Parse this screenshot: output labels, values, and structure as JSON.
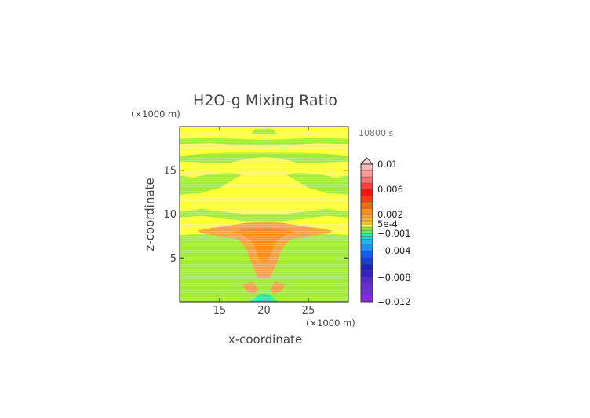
{
  "chart_data": {
    "type": "heatmap",
    "title": "H2O-g Mixing Ratio",
    "xlabel": "x-coordinate",
    "ylabel": "z-coordinate",
    "x_unit": "(×1000 m)",
    "y_unit": "(×1000 m)",
    "time_label": "10800 s",
    "xlim": [
      10.5,
      29.5
    ],
    "ylim": [
      0,
      20
    ],
    "x_ticks": [
      15,
      20,
      25
    ],
    "x_tick_labels": [
      "15",
      "20",
      "25"
    ],
    "y_ticks": [
      5,
      10,
      15
    ],
    "y_tick_labels": [
      "5",
      "10",
      "15"
    ],
    "colorbar": {
      "range": [
        -0.012,
        0.01
      ],
      "labels": [
        {
          "value": 0.01,
          "text": "0.01"
        },
        {
          "value": 0.006,
          "text": "0.006"
        },
        {
          "value": 0.002,
          "text": "0.002"
        },
        {
          "value": 0.0005,
          "text": "5e-4"
        },
        {
          "value": -0.001,
          "text": "−0.001"
        },
        {
          "value": -0.004,
          "text": "−0.004"
        },
        {
          "value": -0.008,
          "text": "−0.008"
        },
        {
          "value": -0.012,
          "text": "−0.012"
        }
      ],
      "levels": [
        {
          "from": -0.012,
          "to": -0.011,
          "color": "#8a2be2"
        },
        {
          "from": -0.011,
          "to": -0.01,
          "color": "#7a2bd8"
        },
        {
          "from": -0.01,
          "to": -0.009,
          "color": "#6a2bd0"
        },
        {
          "from": -0.009,
          "to": -0.008,
          "color": "#552bc8"
        },
        {
          "from": -0.008,
          "to": -0.007,
          "color": "#3a1fbf"
        },
        {
          "from": -0.007,
          "to": -0.006,
          "color": "#2020c0"
        },
        {
          "from": -0.006,
          "to": -0.005,
          "color": "#1040d8"
        },
        {
          "from": -0.005,
          "to": -0.004,
          "color": "#1060f0"
        },
        {
          "from": -0.004,
          "to": -0.003,
          "color": "#1e90ff"
        },
        {
          "from": -0.003,
          "to": -0.002,
          "color": "#20b8f0"
        },
        {
          "from": -0.002,
          "to": -0.0015,
          "color": "#20d8d0"
        },
        {
          "from": -0.0015,
          "to": -0.001,
          "color": "#33e6a0"
        },
        {
          "from": -0.001,
          "to": -0.0005,
          "color": "#66ef55"
        },
        {
          "from": -0.0005,
          "to": 0.0,
          "color": "#a2eb3c"
        },
        {
          "from": 0.0,
          "to": 0.0005,
          "color": "#ffff40"
        },
        {
          "from": 0.0005,
          "to": 0.001,
          "color": "#ffd040"
        },
        {
          "from": 0.001,
          "to": 0.0015,
          "color": "#ffb040"
        },
        {
          "from": 0.0015,
          "to": 0.002,
          "color": "#f5a04a"
        },
        {
          "from": 0.002,
          "to": 0.003,
          "color": "#ff8c1a"
        },
        {
          "from": 0.003,
          "to": 0.004,
          "color": "#ff6a10"
        },
        {
          "from": 0.004,
          "to": 0.005,
          "color": "#ff3c10"
        },
        {
          "from": 0.005,
          "to": 0.006,
          "color": "#ff1010"
        },
        {
          "from": 0.006,
          "to": 0.007,
          "color": "#ff4040"
        },
        {
          "from": 0.007,
          "to": 0.008,
          "color": "#ff7070"
        },
        {
          "from": 0.008,
          "to": 0.009,
          "color": "#ff9a9a"
        },
        {
          "from": 0.009,
          "to": 0.01,
          "color": "#ffb6b6"
        }
      ]
    },
    "regions": [
      {
        "name": "yellow-background",
        "color": "#ffff40",
        "polygon": [
          [
            10.5,
            0
          ],
          [
            29.5,
            0
          ],
          [
            29.5,
            20
          ],
          [
            10.5,
            20
          ]
        ]
      },
      {
        "name": "green-layer-0-8",
        "color": "#a2eb3c",
        "polygon": [
          [
            10.5,
            0
          ],
          [
            29.5,
            0
          ],
          [
            29.5,
            7.6
          ],
          [
            28,
            7.7
          ],
          [
            25,
            7.7
          ],
          [
            22,
            7.4
          ],
          [
            18,
            7.4
          ],
          [
            15,
            7.7
          ],
          [
            12,
            7.7
          ],
          [
            10.5,
            7.6
          ]
        ]
      },
      {
        "name": "green-band-9-10",
        "color": "#a2eb3c",
        "polygon": [
          [
            10.5,
            9.6
          ],
          [
            13,
            9.8
          ],
          [
            16,
            9.4
          ],
          [
            18,
            9.2
          ],
          [
            22,
            9.2
          ],
          [
            24,
            9.4
          ],
          [
            27,
            9.8
          ],
          [
            29.5,
            9.6
          ],
          [
            29.5,
            10.3
          ],
          [
            27,
            10.6
          ],
          [
            24,
            10.2
          ],
          [
            22,
            10.0
          ],
          [
            18,
            10.0
          ],
          [
            16,
            10.2
          ],
          [
            13,
            10.6
          ],
          [
            10.5,
            10.3
          ]
        ]
      },
      {
        "name": "green-left-wedge-12-15",
        "color": "#a2eb3c",
        "polygon": [
          [
            10.5,
            12.2
          ],
          [
            13,
            12.4
          ],
          [
            15,
            13.0
          ],
          [
            16.5,
            13.9
          ],
          [
            17.5,
            14.5
          ],
          [
            16.5,
            14.7
          ],
          [
            14,
            14.6
          ],
          [
            12,
            14.2
          ],
          [
            10.5,
            14.4
          ]
        ]
      },
      {
        "name": "green-right-wedge-12-15",
        "color": "#a2eb3c",
        "polygon": [
          [
            29.5,
            12.2
          ],
          [
            27,
            12.4
          ],
          [
            25,
            13.0
          ],
          [
            23.5,
            13.9
          ],
          [
            22.5,
            14.5
          ],
          [
            23.5,
            14.7
          ],
          [
            26,
            14.6
          ],
          [
            28,
            14.2
          ],
          [
            29.5,
            14.4
          ]
        ]
      },
      {
        "name": "green-band-16-17",
        "color": "#a2eb3c",
        "polygon": [
          [
            10.5,
            16.0
          ],
          [
            13,
            15.9
          ],
          [
            16,
            15.8
          ],
          [
            18,
            16.3
          ],
          [
            20,
            16.5
          ],
          [
            22,
            16.3
          ],
          [
            24,
            15.8
          ],
          [
            27,
            15.9
          ],
          [
            29.5,
            16.0
          ],
          [
            29.5,
            16.6
          ],
          [
            27,
            16.9
          ],
          [
            24,
            17.0
          ],
          [
            22,
            17.0
          ],
          [
            18,
            17.0
          ],
          [
            16,
            17.0
          ],
          [
            13,
            16.9
          ],
          [
            10.5,
            16.6
          ]
        ]
      },
      {
        "name": "green-band-18",
        "color": "#a2eb3c",
        "polygon": [
          [
            10.5,
            18.0
          ],
          [
            14,
            18.1
          ],
          [
            17,
            17.9
          ],
          [
            20,
            17.8
          ],
          [
            23,
            17.9
          ],
          [
            26,
            18.1
          ],
          [
            29.5,
            18.0
          ],
          [
            29.5,
            18.6
          ],
          [
            26,
            18.7
          ],
          [
            23,
            18.6
          ],
          [
            20,
            18.5
          ],
          [
            17,
            18.6
          ],
          [
            14,
            18.7
          ],
          [
            10.5,
            18.6
          ]
        ]
      },
      {
        "name": "green-top-center",
        "color": "#a2eb3c",
        "polygon": [
          [
            18.5,
            19.1
          ],
          [
            21.5,
            19.1
          ],
          [
            21.0,
            19.7
          ],
          [
            19.0,
            19.7
          ]
        ]
      },
      {
        "name": "orange-anvil",
        "color": "#f5a04a",
        "polygon": [
          [
            12.5,
            8.1
          ],
          [
            14,
            8.4
          ],
          [
            16,
            8.7
          ],
          [
            18,
            9.0
          ],
          [
            20,
            9.1
          ],
          [
            22,
            9.0
          ],
          [
            24,
            8.7
          ],
          [
            26,
            8.4
          ],
          [
            27.7,
            8.1
          ],
          [
            27.3,
            7.8
          ],
          [
            25,
            7.5
          ],
          [
            23,
            7.1
          ],
          [
            22.3,
            6.4
          ],
          [
            21.8,
            5.6
          ],
          [
            21.6,
            4.8
          ],
          [
            21.2,
            4.0
          ],
          [
            21.0,
            3.3
          ],
          [
            20.6,
            2.7
          ],
          [
            19.4,
            2.7
          ],
          [
            19.0,
            3.3
          ],
          [
            18.8,
            4.0
          ],
          [
            18.4,
            4.8
          ],
          [
            18.2,
            5.6
          ],
          [
            17.7,
            6.4
          ],
          [
            17.0,
            7.1
          ],
          [
            15,
            7.5
          ],
          [
            13,
            7.8
          ]
        ]
      },
      {
        "name": "darker-orange-core",
        "color": "#ff8c1a",
        "polygon": [
          [
            16.5,
            8.0
          ],
          [
            18,
            8.3
          ],
          [
            20,
            8.4
          ],
          [
            22,
            8.3
          ],
          [
            23.5,
            8.0
          ],
          [
            22.5,
            7.7
          ],
          [
            21.5,
            7.0
          ],
          [
            21.0,
            6.2
          ],
          [
            20.8,
            5.4
          ],
          [
            20.5,
            4.7
          ],
          [
            19.5,
            4.7
          ],
          [
            19.2,
            5.4
          ],
          [
            19.0,
            6.2
          ],
          [
            18.5,
            7.0
          ],
          [
            17.5,
            7.7
          ]
        ]
      },
      {
        "name": "lower-orange-pair-left",
        "color": "#f5a04a",
        "polygon": [
          [
            17.6,
            2.0
          ],
          [
            18.8,
            2.3
          ],
          [
            19.3,
            1.4
          ],
          [
            18.9,
            0.9
          ],
          [
            18.0,
            1.2
          ]
        ]
      },
      {
        "name": "lower-orange-pair-right",
        "color": "#f5a04a",
        "polygon": [
          [
            22.4,
            2.0
          ],
          [
            21.2,
            2.3
          ],
          [
            20.7,
            1.4
          ],
          [
            21.1,
            0.9
          ],
          [
            22.0,
            1.2
          ]
        ]
      },
      {
        "name": "cyan-base",
        "color": "#33e6a0",
        "polygon": [
          [
            18.3,
            0
          ],
          [
            21.7,
            0
          ],
          [
            21.0,
            0.5
          ],
          [
            20.3,
            0.9
          ],
          [
            19.7,
            0.9
          ],
          [
            19.0,
            0.5
          ]
        ]
      },
      {
        "name": "teal-base-core",
        "color": "#20d8d0",
        "polygon": [
          [
            19.1,
            0
          ],
          [
            20.9,
            0
          ],
          [
            20.4,
            0.4
          ],
          [
            19.6,
            0.4
          ]
        ]
      }
    ]
  }
}
